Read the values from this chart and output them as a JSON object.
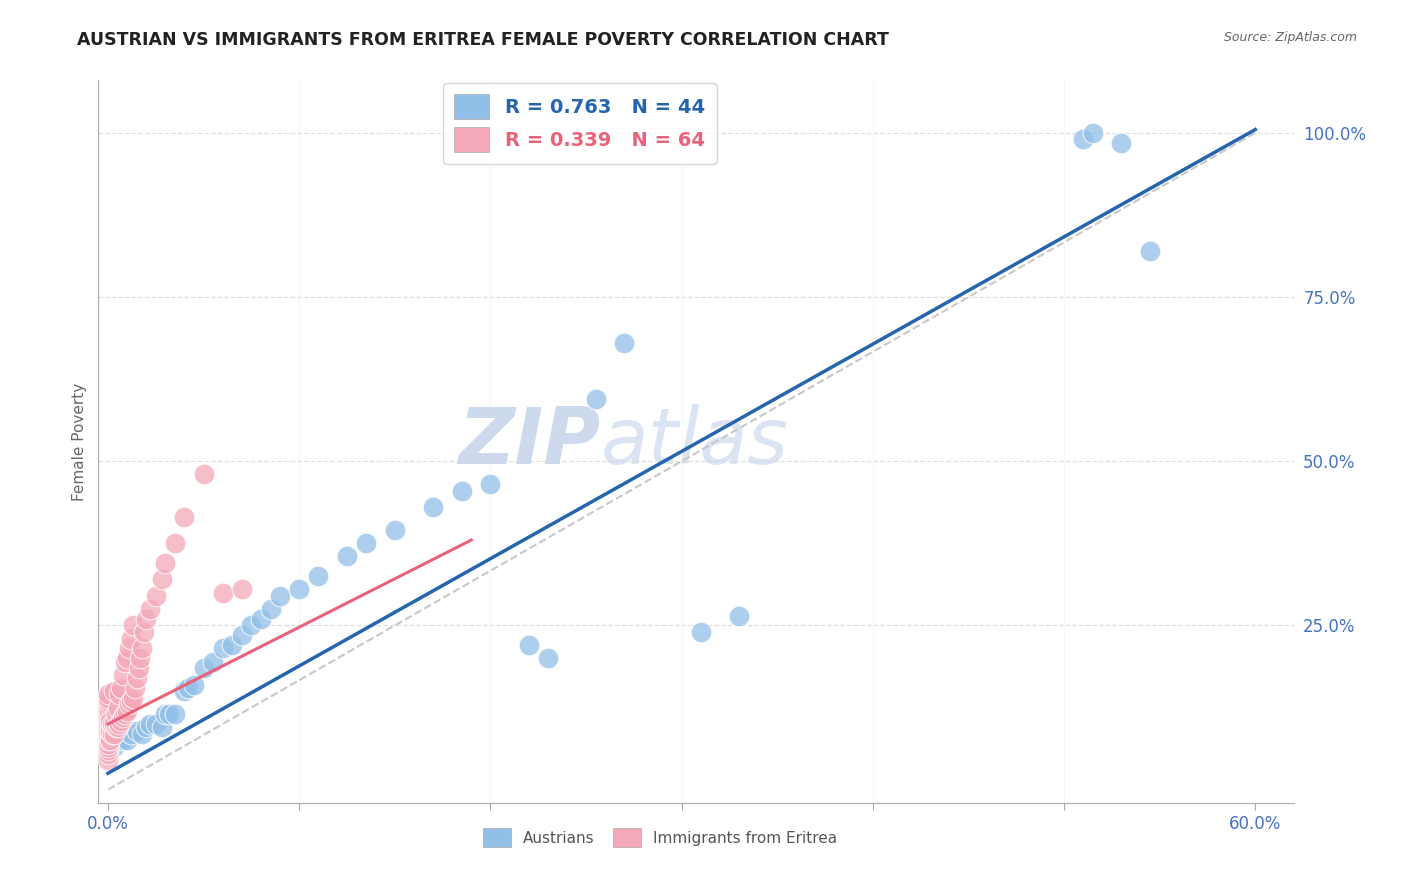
{
  "title": "AUSTRIAN VS IMMIGRANTS FROM ERITREA FEMALE POVERTY CORRELATION CHART",
  "source": "Source: ZipAtlas.com",
  "ylabel": "Female Poverty",
  "xlim": [
    -0.005,
    0.62
  ],
  "ylim": [
    -0.02,
    1.08
  ],
  "xticks": [
    0.0,
    0.1,
    0.2,
    0.3,
    0.4,
    0.5,
    0.6
  ],
  "xticklabels": [
    "0.0%",
    "",
    "",
    "",
    "",
    "",
    "60.0%"
  ],
  "yticks": [
    0.0,
    0.25,
    0.5,
    0.75,
    1.0
  ],
  "yticklabels": [
    "",
    "25.0%",
    "50.0%",
    "75.0%",
    "100.0%"
  ],
  "austrians_R": 0.763,
  "austrians_N": 44,
  "eritrea_R": 0.339,
  "eritrea_N": 64,
  "blue_color": "#92bfe8",
  "pink_color": "#f4a8b8",
  "blue_line_color": "#2565ae",
  "pink_line_color": "#e8637a",
  "ref_line_color": "#c8c8c8",
  "grid_color": "#d8d8d8",
  "tick_color": "#4472c4",
  "watermark_color": "#cdd9ed",
  "aus_x": [
    0.003,
    0.005,
    0.008,
    0.01,
    0.012,
    0.015,
    0.018,
    0.02,
    0.022,
    0.025,
    0.028,
    0.03,
    0.032,
    0.035,
    0.04,
    0.042,
    0.045,
    0.05,
    0.055,
    0.06,
    0.065,
    0.07,
    0.075,
    0.08,
    0.085,
    0.09,
    0.1,
    0.11,
    0.125,
    0.135,
    0.15,
    0.17,
    0.185,
    0.2,
    0.22,
    0.23,
    0.255,
    0.27,
    0.31,
    0.33,
    0.51,
    0.515,
    0.53,
    0.545
  ],
  "aus_y": [
    0.065,
    0.075,
    0.075,
    0.075,
    0.085,
    0.09,
    0.085,
    0.095,
    0.1,
    0.1,
    0.095,
    0.115,
    0.115,
    0.115,
    0.15,
    0.155,
    0.16,
    0.185,
    0.195,
    0.215,
    0.22,
    0.235,
    0.25,
    0.26,
    0.275,
    0.295,
    0.305,
    0.325,
    0.355,
    0.375,
    0.395,
    0.43,
    0.455,
    0.465,
    0.22,
    0.2,
    0.595,
    0.68,
    0.24,
    0.265,
    0.99,
    1.0,
    0.985,
    0.82
  ],
  "eri_x": [
    0.0,
    0.0,
    0.0,
    0.0,
    0.0,
    0.0,
    0.0,
    0.0,
    0.0,
    0.0,
    0.0,
    0.0,
    0.0,
    0.0,
    0.0,
    0.0,
    0.0,
    0.0,
    0.0,
    0.0,
    0.001,
    0.001,
    0.001,
    0.002,
    0.002,
    0.003,
    0.003,
    0.003,
    0.004,
    0.004,
    0.005,
    0.005,
    0.006,
    0.006,
    0.007,
    0.007,
    0.008,
    0.008,
    0.009,
    0.009,
    0.01,
    0.01,
    0.011,
    0.011,
    0.012,
    0.012,
    0.013,
    0.013,
    0.014,
    0.015,
    0.016,
    0.017,
    0.018,
    0.019,
    0.02,
    0.022,
    0.025,
    0.028,
    0.03,
    0.035,
    0.04,
    0.05,
    0.06,
    0.07
  ],
  "eri_y": [
    0.045,
    0.055,
    0.06,
    0.065,
    0.07,
    0.075,
    0.08,
    0.085,
    0.09,
    0.095,
    0.1,
    0.105,
    0.11,
    0.115,
    0.12,
    0.125,
    0.13,
    0.135,
    0.14,
    0.145,
    0.075,
    0.09,
    0.105,
    0.085,
    0.1,
    0.085,
    0.1,
    0.15,
    0.095,
    0.115,
    0.095,
    0.125,
    0.1,
    0.145,
    0.105,
    0.155,
    0.11,
    0.175,
    0.115,
    0.195,
    0.12,
    0.2,
    0.13,
    0.215,
    0.135,
    0.23,
    0.14,
    0.25,
    0.155,
    0.17,
    0.185,
    0.2,
    0.215,
    0.24,
    0.26,
    0.275,
    0.295,
    0.32,
    0.345,
    0.375,
    0.415,
    0.48,
    0.3,
    0.305
  ],
  "aus_line_x": [
    0.0,
    0.6
  ],
  "aus_line_y": [
    0.025,
    1.005
  ],
  "eri_line_x": [
    0.0,
    0.19
  ],
  "eri_line_y": [
    0.1,
    0.38
  ],
  "ref_line_x": [
    0.0,
    0.6
  ],
  "ref_line_y": [
    0.0,
    1.0
  ]
}
